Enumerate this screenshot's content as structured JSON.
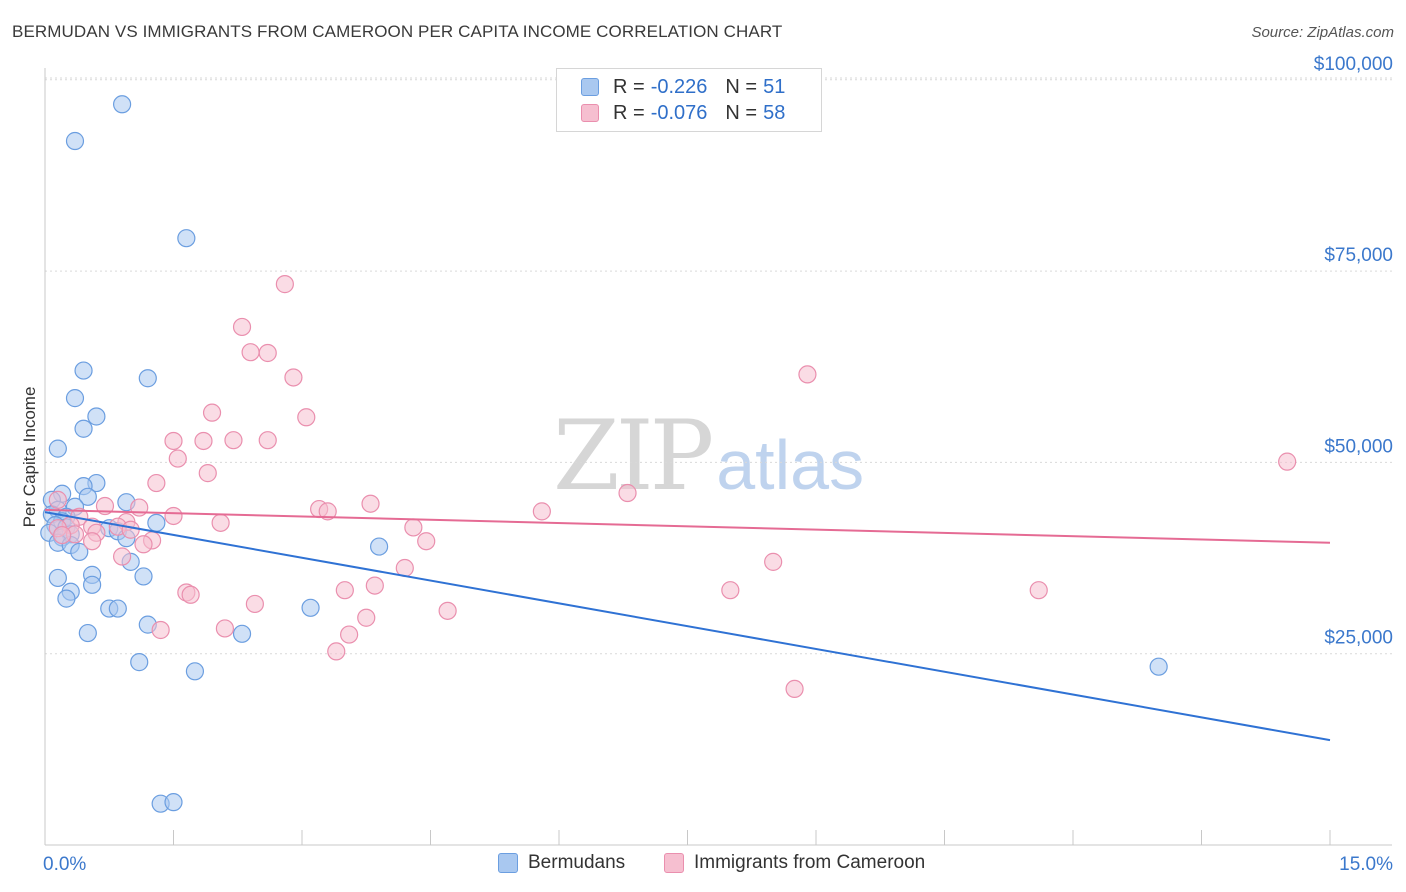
{
  "title": "BERMUDAN VS IMMIGRANTS FROM CAMEROON PER CAPITA INCOME CORRELATION CHART",
  "source": "Source: ZipAtlas.com",
  "watermark": {
    "zip": "ZIP",
    "atlas": "atlas"
  },
  "legend": {
    "r_label": "R =",
    "n_label": "N =",
    "rows": [
      {
        "r": "-0.226",
        "n": "51"
      },
      {
        "r": "-0.076",
        "n": "58"
      }
    ]
  },
  "colors": {
    "blue_fill": "#a9c8f0",
    "blue_stroke": "#6b9ee0",
    "blue_line": "#2f72d4",
    "pink_fill": "#f6bfd0",
    "pink_stroke": "#ea8fae",
    "pink_line": "#e56b94",
    "axis_text": "#3b78cc"
  },
  "chart_data": {
    "type": "scatter",
    "xlabel": "",
    "ylabel": "Per Capita Income",
    "xlim": [
      0,
      15
    ],
    "ylim": [
      0,
      105000
    ],
    "x_tick_labels": [
      "0.0%",
      "15.0%"
    ],
    "y_ticks": [
      25000,
      50000,
      75000,
      100000
    ],
    "y_tick_labels": [
      "$25,000",
      "$50,000",
      "$75,000",
      "$100,000"
    ],
    "series": [
      {
        "name": "Bermudans",
        "r": -0.226,
        "n": 51,
        "trend": {
          "x": [
            0,
            15
          ],
          "y": [
            43500,
            13700
          ]
        },
        "points": [
          [
            0.9,
            96800
          ],
          [
            0.35,
            92000
          ],
          [
            1.65,
            79300
          ],
          [
            0.45,
            62000
          ],
          [
            1.2,
            61000
          ],
          [
            0.35,
            58400
          ],
          [
            0.6,
            56000
          ],
          [
            0.45,
            54400
          ],
          [
            0.15,
            51800
          ],
          [
            0.6,
            47300
          ],
          [
            0.45,
            46900
          ],
          [
            0.2,
            45900
          ],
          [
            0.5,
            45500
          ],
          [
            0.08,
            45100
          ],
          [
            0.95,
            44800
          ],
          [
            0.35,
            44200
          ],
          [
            0.15,
            43800
          ],
          [
            0.08,
            43200
          ],
          [
            0.25,
            42900
          ],
          [
            0.2,
            42300
          ],
          [
            1.3,
            42100
          ],
          [
            0.12,
            41800
          ],
          [
            0.25,
            41500
          ],
          [
            0.75,
            41400
          ],
          [
            0.85,
            41000
          ],
          [
            0.05,
            40800
          ],
          [
            0.3,
            40600
          ],
          [
            0.2,
            40200
          ],
          [
            0.95,
            40100
          ],
          [
            0.15,
            39500
          ],
          [
            0.3,
            39200
          ],
          [
            0.4,
            38300
          ],
          [
            3.9,
            39000
          ],
          [
            1.0,
            37000
          ],
          [
            0.55,
            35300
          ],
          [
            1.15,
            35100
          ],
          [
            0.15,
            34900
          ],
          [
            0.55,
            34000
          ],
          [
            0.3,
            33100
          ],
          [
            0.25,
            32200
          ],
          [
            0.75,
            30900
          ],
          [
            0.85,
            30900
          ],
          [
            3.1,
            31000
          ],
          [
            1.2,
            28800
          ],
          [
            0.5,
            27700
          ],
          [
            2.3,
            27600
          ],
          [
            1.1,
            23900
          ],
          [
            1.75,
            22700
          ],
          [
            13.0,
            23300
          ],
          [
            1.35,
            5400
          ],
          [
            1.5,
            5600
          ]
        ]
      },
      {
        "name": "Immigrants from Cameroon",
        "r": -0.076,
        "n": 58,
        "trend": {
          "x": [
            0,
            15
          ],
          "y": [
            43800,
            39500
          ]
        },
        "points": [
          [
            2.8,
            73300
          ],
          [
            2.3,
            67700
          ],
          [
            2.4,
            64400
          ],
          [
            2.6,
            64300
          ],
          [
            8.9,
            61500
          ],
          [
            2.9,
            61100
          ],
          [
            1.95,
            56500
          ],
          [
            3.05,
            55900
          ],
          [
            1.5,
            52800
          ],
          [
            1.85,
            52800
          ],
          [
            2.2,
            52900
          ],
          [
            2.6,
            52900
          ],
          [
            1.55,
            50500
          ],
          [
            14.5,
            50100
          ],
          [
            1.9,
            48600
          ],
          [
            1.3,
            47300
          ],
          [
            6.8,
            46000
          ],
          [
            0.15,
            45100
          ],
          [
            3.8,
            44600
          ],
          [
            0.7,
            44300
          ],
          [
            1.1,
            44100
          ],
          [
            3.2,
            43900
          ],
          [
            3.3,
            43600
          ],
          [
            5.8,
            43600
          ],
          [
            1.5,
            43000
          ],
          [
            0.4,
            42900
          ],
          [
            0.95,
            42200
          ],
          [
            2.05,
            42100
          ],
          [
            0.3,
            41800
          ],
          [
            0.55,
            41600
          ],
          [
            0.85,
            41600
          ],
          [
            0.15,
            41400
          ],
          [
            4.3,
            41500
          ],
          [
            1.0,
            41200
          ],
          [
            0.6,
            40800
          ],
          [
            0.35,
            40600
          ],
          [
            0.2,
            40500
          ],
          [
            1.25,
            39800
          ],
          [
            0.55,
            39700
          ],
          [
            4.45,
            39700
          ],
          [
            1.15,
            39300
          ],
          [
            0.9,
            37700
          ],
          [
            8.5,
            37000
          ],
          [
            4.2,
            36200
          ],
          [
            3.85,
            33900
          ],
          [
            3.5,
            33300
          ],
          [
            8.0,
            33300
          ],
          [
            11.6,
            33300
          ],
          [
            1.65,
            33000
          ],
          [
            1.7,
            32700
          ],
          [
            2.45,
            31500
          ],
          [
            4.7,
            30600
          ],
          [
            3.75,
            29700
          ],
          [
            2.1,
            28300
          ],
          [
            1.35,
            28100
          ],
          [
            3.55,
            27500
          ],
          [
            3.4,
            25300
          ],
          [
            8.75,
            20400
          ]
        ]
      }
    ]
  }
}
